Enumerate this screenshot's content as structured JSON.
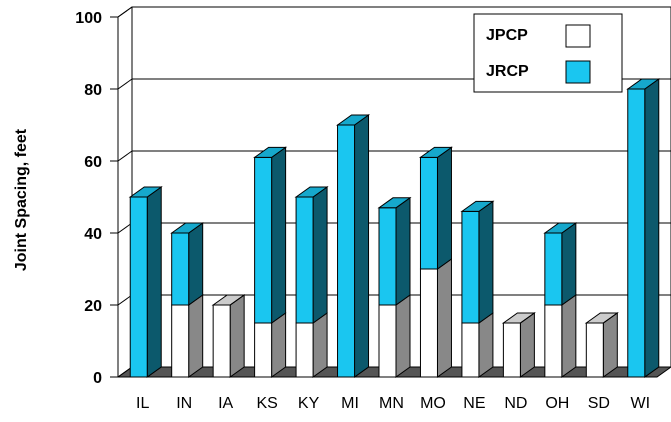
{
  "chart_data": {
    "type": "bar3d_stacked",
    "y_label": "Joint Spacing, feet",
    "categories": [
      "IL",
      "IN",
      "IA",
      "KS",
      "KY",
      "MI",
      "MN",
      "MO",
      "NE",
      "ND",
      "OH",
      "SD",
      "WI"
    ],
    "series": [
      {
        "name": "JPCP",
        "color": "#ffffff",
        "values": [
          0,
          20,
          20,
          15,
          15,
          0,
          20,
          30,
          15,
          15,
          20,
          15,
          0
        ]
      },
      {
        "name": "JRCP",
        "color": "#1ac6f0",
        "values": [
          50,
          20,
          0,
          46,
          35,
          70,
          27,
          31,
          31,
          0,
          20,
          0,
          80
        ]
      }
    ],
    "ylim": [
      0,
      100
    ],
    "yticks": [
      0,
      20,
      40,
      60,
      80,
      100
    ],
    "grid": true,
    "legend": "top-right"
  }
}
